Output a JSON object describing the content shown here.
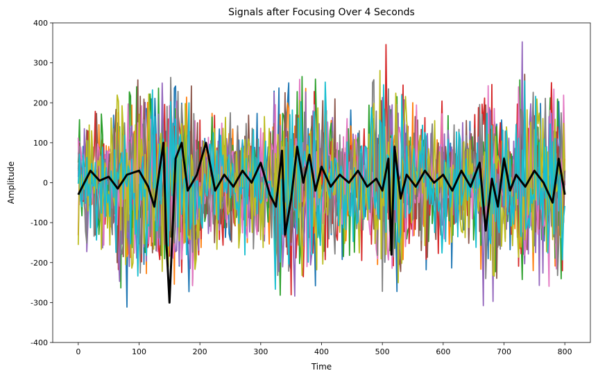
{
  "chart_data": {
    "type": "line",
    "title": "Signals after Focusing Over 4 Seconds",
    "xlabel": "Time",
    "ylabel": "Amplitude",
    "xlim": [
      -42,
      842
    ],
    "ylim": [
      -400,
      400
    ],
    "xticks": [
      0,
      100,
      200,
      300,
      400,
      500,
      600,
      700,
      800
    ],
    "yticks": [
      -400,
      -300,
      -200,
      -100,
      0,
      100,
      200,
      300,
      400
    ],
    "grid": false,
    "legend": "none",
    "series_colors": [
      "#1f77b4",
      "#ff7f0e",
      "#2ca02c",
      "#d62728",
      "#9467bd",
      "#8c564b",
      "#e377c2",
      "#7f7f7f",
      "#bcbd22",
      "#17becf"
    ],
    "focused_color": "#000000",
    "n_points": 800,
    "focused_series": [
      {
        "x": 0,
        "y": -30
      },
      {
        "x": 10,
        "y": 0
      },
      {
        "x": 20,
        "y": 30
      },
      {
        "x": 35,
        "y": 5
      },
      {
        "x": 50,
        "y": 15
      },
      {
        "x": 65,
        "y": -15
      },
      {
        "x": 80,
        "y": 20
      },
      {
        "x": 100,
        "y": 30
      },
      {
        "x": 115,
        "y": -10
      },
      {
        "x": 125,
        "y": -60
      },
      {
        "x": 140,
        "y": 100
      },
      {
        "x": 145,
        "y": -150
      },
      {
        "x": 150,
        "y": -300
      },
      {
        "x": 160,
        "y": 60
      },
      {
        "x": 170,
        "y": 100
      },
      {
        "x": 180,
        "y": -20
      },
      {
        "x": 195,
        "y": 20
      },
      {
        "x": 210,
        "y": 100
      },
      {
        "x": 225,
        "y": -20
      },
      {
        "x": 240,
        "y": 20
      },
      {
        "x": 255,
        "y": -10
      },
      {
        "x": 270,
        "y": 30
      },
      {
        "x": 285,
        "y": 0
      },
      {
        "x": 300,
        "y": 50
      },
      {
        "x": 315,
        "y": -30
      },
      {
        "x": 325,
        "y": -60
      },
      {
        "x": 335,
        "y": 80
      },
      {
        "x": 340,
        "y": -130
      },
      {
        "x": 350,
        "y": -40
      },
      {
        "x": 360,
        "y": 90
      },
      {
        "x": 370,
        "y": 0
      },
      {
        "x": 380,
        "y": 70
      },
      {
        "x": 390,
        "y": -20
      },
      {
        "x": 400,
        "y": 40
      },
      {
        "x": 415,
        "y": -10
      },
      {
        "x": 430,
        "y": 20
      },
      {
        "x": 445,
        "y": 0
      },
      {
        "x": 460,
        "y": 30
      },
      {
        "x": 475,
        "y": -10
      },
      {
        "x": 490,
        "y": 10
      },
      {
        "x": 500,
        "y": -20
      },
      {
        "x": 510,
        "y": 60
      },
      {
        "x": 515,
        "y": -180
      },
      {
        "x": 520,
        "y": 90
      },
      {
        "x": 530,
        "y": -40
      },
      {
        "x": 540,
        "y": 20
      },
      {
        "x": 555,
        "y": -10
      },
      {
        "x": 570,
        "y": 30
      },
      {
        "x": 585,
        "y": 0
      },
      {
        "x": 600,
        "y": 20
      },
      {
        "x": 615,
        "y": -20
      },
      {
        "x": 630,
        "y": 30
      },
      {
        "x": 645,
        "y": -10
      },
      {
        "x": 660,
        "y": 50
      },
      {
        "x": 670,
        "y": -120
      },
      {
        "x": 680,
        "y": 10
      },
      {
        "x": 690,
        "y": -60
      },
      {
        "x": 700,
        "y": 60
      },
      {
        "x": 710,
        "y": -20
      },
      {
        "x": 720,
        "y": 20
      },
      {
        "x": 735,
        "y": -10
      },
      {
        "x": 750,
        "y": 30
      },
      {
        "x": 765,
        "y": 0
      },
      {
        "x": 780,
        "y": -50
      },
      {
        "x": 790,
        "y": 60
      },
      {
        "x": 800,
        "y": -30
      }
    ]
  }
}
